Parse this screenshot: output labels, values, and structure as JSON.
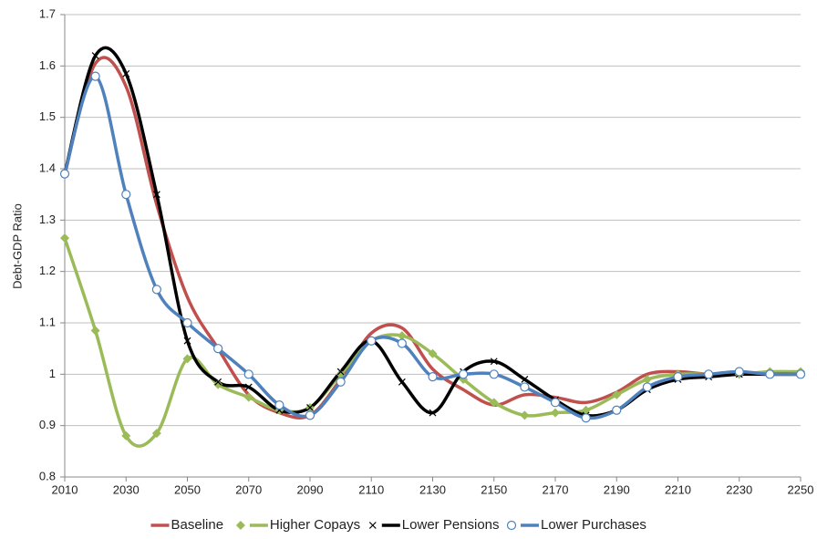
{
  "chart_data": {
    "type": "line",
    "y_label": "Debt-GDP Ratio",
    "x": [
      2010,
      2020,
      2030,
      2040,
      2050,
      2060,
      2070,
      2080,
      2090,
      2100,
      2110,
      2120,
      2130,
      2140,
      2150,
      2160,
      2170,
      2180,
      2190,
      2200,
      2210,
      2220,
      2230,
      2240,
      2250
    ],
    "xlim": [
      2010,
      2250
    ],
    "xticks": [
      2010,
      2030,
      2050,
      2070,
      2090,
      2110,
      2130,
      2150,
      2170,
      2190,
      2210,
      2230,
      2250
    ],
    "ylim": [
      0.8,
      1.7
    ],
    "yticks": [
      0.8,
      0.9,
      1,
      1.1,
      1.2,
      1.3,
      1.4,
      1.5,
      1.6,
      1.7
    ],
    "grid": true,
    "legend": "bottom",
    "series": [
      {
        "name": "Baseline",
        "color": "#c0504d",
        "marker": "none",
        "values": [
          1.39,
          1.605,
          1.56,
          1.33,
          1.15,
          1.05,
          0.96,
          0.925,
          0.92,
          0.99,
          1.08,
          1.09,
          1.01,
          0.97,
          0.94,
          0.96,
          0.955,
          0.945,
          0.965,
          1.0,
          1.005,
          1.0,
          1.0,
          1.0,
          1.0
        ]
      },
      {
        "name": "Higher Copays",
        "color": "#9bbb59",
        "marker": "diamond",
        "values": [
          1.265,
          1.085,
          0.88,
          0.885,
          1.03,
          0.98,
          0.955,
          0.93,
          0.935,
          1.0,
          1.065,
          1.075,
          1.04,
          0.99,
          0.945,
          0.92,
          0.925,
          0.93,
          0.96,
          0.99,
          1.0,
          1.0,
          1.0,
          1.005,
          1.005
        ]
      },
      {
        "name": "Lower Pensions",
        "color": "#000000",
        "marker": "x",
        "values": [
          1.39,
          1.62,
          1.585,
          1.35,
          1.065,
          0.985,
          0.975,
          0.93,
          0.935,
          1.005,
          1.065,
          0.985,
          0.925,
          1.005,
          1.025,
          0.99,
          0.95,
          0.92,
          0.93,
          0.97,
          0.99,
          0.995,
          1.0,
          1.0,
          1.0
        ]
      },
      {
        "name": "Lower Purchases",
        "color": "#4f81bd",
        "marker": "circle",
        "values": [
          1.39,
          1.58,
          1.35,
          1.165,
          1.1,
          1.05,
          1.0,
          0.94,
          0.92,
          0.985,
          1.065,
          1.06,
          0.995,
          1.0,
          1.0,
          0.975,
          0.945,
          0.915,
          0.93,
          0.975,
          0.995,
          1.0,
          1.005,
          1.0,
          1.0
        ]
      }
    ]
  }
}
